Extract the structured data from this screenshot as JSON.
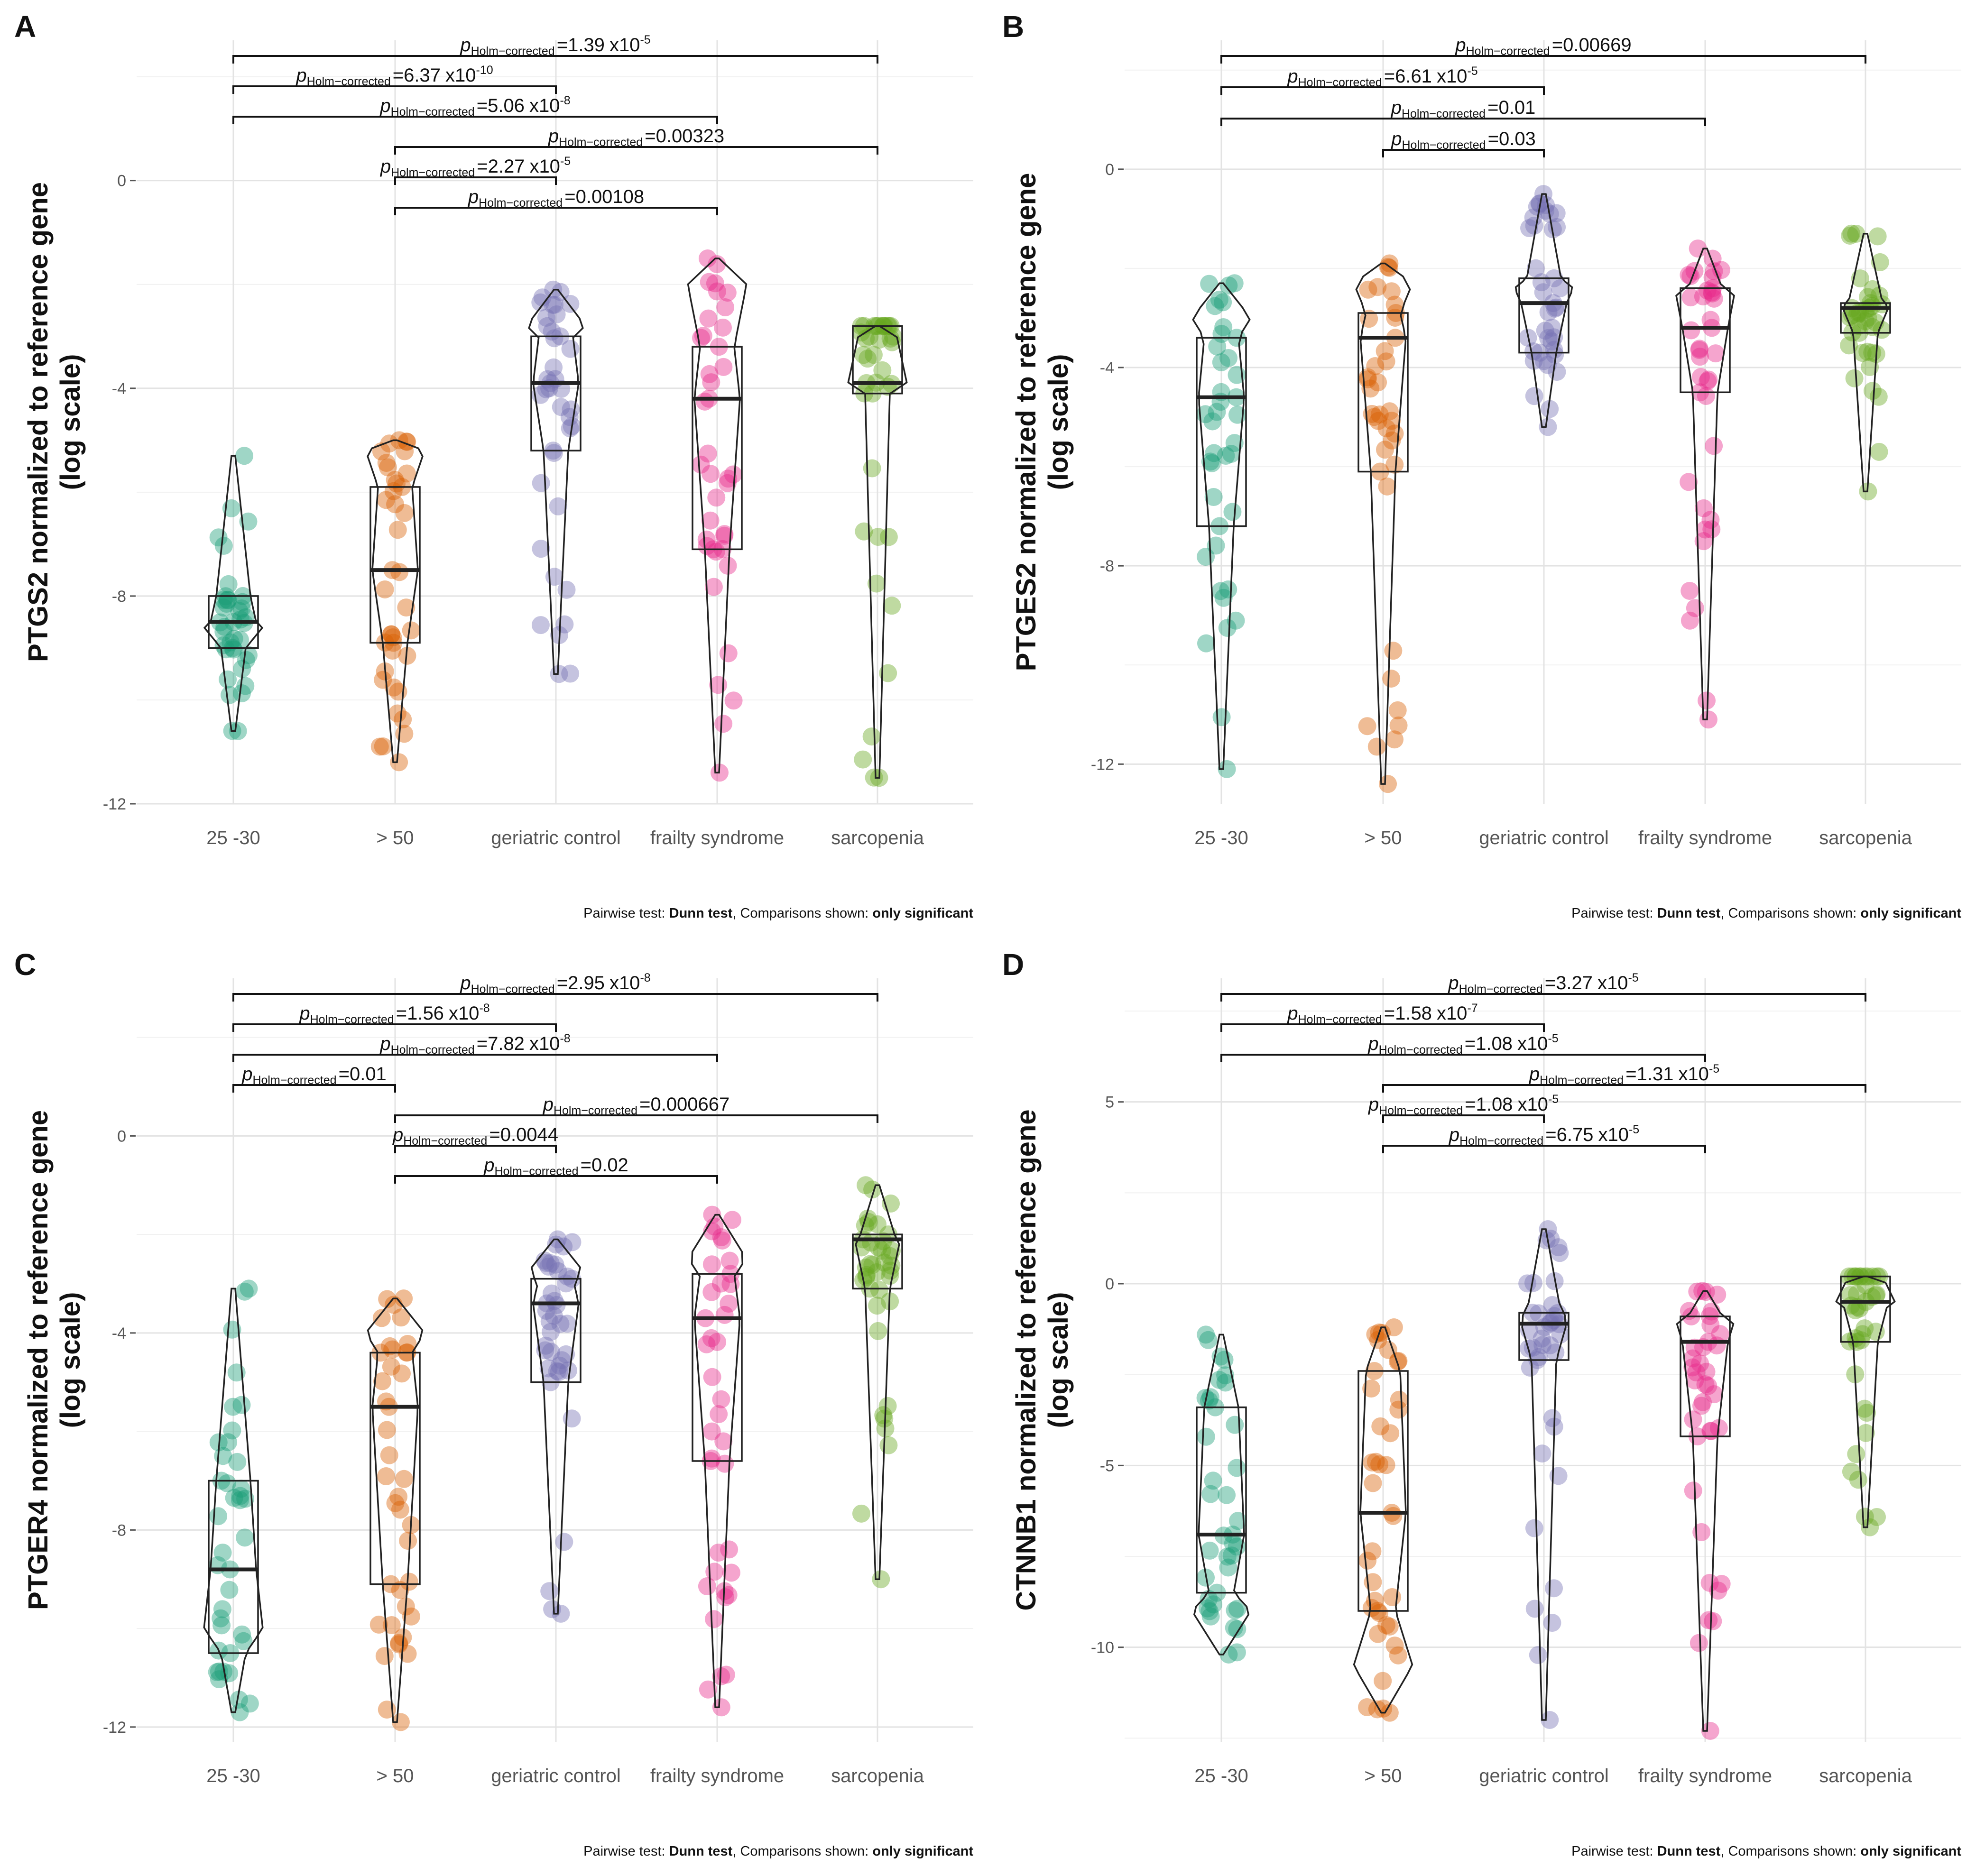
{
  "colors": {
    "25 -30": "#1b9e77",
    "> 50": "#d95f02",
    "geriatric control": "#7570b3",
    "frailty syndrome": "#e7298a",
    "sarcopenia": "#66a61e"
  },
  "chart_data": [
    {
      "panel": "A",
      "type": "violin-box-scatter",
      "ylabel_line1": "PTGS2 normalized to reference gene",
      "ylabel_line2": "(log scale)",
      "categories": [
        "25 -30",
        "> 50",
        "geriatric control",
        "frailty syndrome",
        "sarcopenia"
      ],
      "yticks": [
        0,
        -4,
        -8,
        -12
      ],
      "ylim": [
        -12.0,
        2.7
      ],
      "groups": [
        {
          "name": "25 -30",
          "min": -10.6,
          "q1": -9.0,
          "median": -8.5,
          "q3": -8.0,
          "max": -5.3,
          "mode": -8.6
        },
        {
          "name": "> 50",
          "min": -11.2,
          "q1": -8.9,
          "median": -7.5,
          "q3": -5.9,
          "max": -5.0,
          "mode": -5.2
        },
        {
          "name": "geriatric control",
          "min": -9.5,
          "q1": -5.2,
          "median": -3.9,
          "q3": -3.0,
          "max": -2.1,
          "mode": -2.8
        },
        {
          "name": "frailty syndrome",
          "min": -11.4,
          "q1": -7.1,
          "median": -4.2,
          "q3": -3.2,
          "max": -1.5,
          "mode": -2.0
        },
        {
          "name": "sarcopenia",
          "min": -11.5,
          "q1": -4.1,
          "median": -3.9,
          "q3": -2.8,
          "max": -2.8,
          "mode": -3.9
        }
      ],
      "comparisons": [
        {
          "from": "25 -30",
          "to": "sarcopenia",
          "p_value": "1.39",
          "p_exp": "-5"
        },
        {
          "from": "25 -30",
          "to": "geriatric control",
          "p_value": "6.37",
          "p_exp": "-10"
        },
        {
          "from": "25 -30",
          "to": "frailty syndrome",
          "p_value": "5.06",
          "p_exp": "-8"
        },
        {
          "from": "> 50",
          "to": "sarcopenia",
          "p_value": "0.00323",
          "p_exp": ""
        },
        {
          "from": "> 50",
          "to": "geriatric control",
          "p_value": "2.27",
          "p_exp": "-5"
        },
        {
          "from": "> 50",
          "to": "frailty syndrome",
          "p_value": "0.00108",
          "p_exp": ""
        }
      ]
    },
    {
      "panel": "B",
      "type": "violin-box-scatter",
      "ylabel_line1": "PTGES2 normalized to reference gene",
      "ylabel_line2": "(log scale)",
      "categories": [
        "25 -30",
        "> 50",
        "geriatric control",
        "frailty syndrome",
        "sarcopenia"
      ],
      "yticks": [
        0,
        -4,
        -8,
        -12
      ],
      "ylim": [
        -12.8,
        2.6
      ],
      "groups": [
        {
          "name": "25 -30",
          "min": -12.1,
          "q1": -7.2,
          "median": -4.6,
          "q3": -3.4,
          "max": -2.3,
          "mode": -3.0
        },
        {
          "name": "> 50",
          "min": -12.4,
          "q1": -6.1,
          "median": -3.4,
          "q3": -2.9,
          "max": -1.9,
          "mode": -2.3
        },
        {
          "name": "geriatric control",
          "min": -5.2,
          "q1": -3.7,
          "median": -2.7,
          "q3": -2.2,
          "max": -0.5,
          "mode": -2.4
        },
        {
          "name": "frailty syndrome",
          "min": -11.1,
          "q1": -4.5,
          "median": -3.2,
          "q3": -2.4,
          "max": -1.6,
          "mode": -2.5
        },
        {
          "name": "sarcopenia",
          "min": -6.5,
          "q1": -3.3,
          "median": -2.8,
          "q3": -2.7,
          "max": -1.3,
          "mode": -2.8
        }
      ],
      "comparisons": [
        {
          "from": "25 -30",
          "to": "sarcopenia",
          "p_value": "0.00669",
          "p_exp": ""
        },
        {
          "from": "25 -30",
          "to": "geriatric control",
          "p_value": "6.61",
          "p_exp": "-5"
        },
        {
          "from": "25 -30",
          "to": "frailty syndrome",
          "p_value": "0.01",
          "p_exp": ""
        },
        {
          "from": "> 50",
          "to": "geriatric control",
          "p_value": "0.03",
          "p_exp": ""
        }
      ]
    },
    {
      "panel": "C",
      "type": "violin-box-scatter",
      "ylabel_line1": "PTGER4 normalized to reference gene",
      "ylabel_line2": "(log scale)",
      "categories": [
        "25 -30",
        "> 50",
        "geriatric control",
        "frailty syndrome",
        "sarcopenia"
      ],
      "yticks": [
        0,
        -4,
        -8,
        -12
      ],
      "ylim": [
        -12.3,
        3.2
      ],
      "groups": [
        {
          "name": "25 -30",
          "min": -11.7,
          "q1": -10.5,
          "median": -8.8,
          "q3": -7.0,
          "max": -3.1,
          "mode": -10.0
        },
        {
          "name": "> 50",
          "min": -11.9,
          "q1": -9.1,
          "median": -5.5,
          "q3": -4.4,
          "max": -3.3,
          "mode": -4.0
        },
        {
          "name": "geriatric control",
          "min": -9.7,
          "q1": -5.0,
          "median": -3.4,
          "q3": -2.9,
          "max": -2.1,
          "mode": -2.8
        },
        {
          "name": "frailty syndrome",
          "min": -11.6,
          "q1": -6.6,
          "median": -3.7,
          "q3": -2.8,
          "max": -1.6,
          "mode": -2.5
        },
        {
          "name": "sarcopenia",
          "min": -9.0,
          "q1": -3.1,
          "median": -2.1,
          "q3": -2.0,
          "max": -1.0,
          "mode": -2.0
        }
      ],
      "comparisons": [
        {
          "from": "25 -30",
          "to": "sarcopenia",
          "p_value": "2.95",
          "p_exp": "-8"
        },
        {
          "from": "25 -30",
          "to": "geriatric control",
          "p_value": "1.56",
          "p_exp": "-8"
        },
        {
          "from": "25 -30",
          "to": "frailty syndrome",
          "p_value": "7.82",
          "p_exp": "-8"
        },
        {
          "from": "25 -30",
          "to": "> 50",
          "p_value": "0.01",
          "p_exp": ""
        },
        {
          "from": "> 50",
          "to": "sarcopenia",
          "p_value": "0.000667",
          "p_exp": ""
        },
        {
          "from": "> 50",
          "to": "geriatric control",
          "p_value": "0.0044",
          "p_exp": ""
        },
        {
          "from": "> 50",
          "to": "frailty syndrome",
          "p_value": "0.02",
          "p_exp": ""
        }
      ]
    },
    {
      "panel": "D",
      "type": "violin-box-scatter",
      "ylabel_line1": "CTNNB1 normalized to reference gene",
      "ylabel_line2": "(log scale)",
      "categories": [
        "25 -30",
        "> 50",
        "geriatric control",
        "frailty syndrome",
        "sarcopenia"
      ],
      "yticks": [
        5,
        0,
        -5,
        -10
      ],
      "ylim": [
        -12.6,
        8.4
      ],
      "groups": [
        {
          "name": "25 -30",
          "min": -10.2,
          "q1": -8.5,
          "median": -6.9,
          "q3": -3.4,
          "max": -1.4,
          "mode": -9.0
        },
        {
          "name": "> 50",
          "min": -11.8,
          "q1": -9.0,
          "median": -6.3,
          "q3": -2.4,
          "max": -1.2,
          "mode": -10.5
        },
        {
          "name": "geriatric control",
          "min": -12.0,
          "q1": -2.1,
          "median": -1.1,
          "q3": -0.8,
          "max": 1.5,
          "mode": -1.0
        },
        {
          "name": "frailty syndrome",
          "min": -12.3,
          "q1": -4.2,
          "median": -1.6,
          "q3": -0.9,
          "max": -0.2,
          "mode": -1.0
        },
        {
          "name": "sarcopenia",
          "min": -6.7,
          "q1": -1.6,
          "median": -0.5,
          "q3": 0.2,
          "max": 0.2,
          "mode": -0.5
        }
      ],
      "comparisons": [
        {
          "from": "25 -30",
          "to": "sarcopenia",
          "p_value": "3.27",
          "p_exp": "-5"
        },
        {
          "from": "25 -30",
          "to": "geriatric control",
          "p_value": "1.58",
          "p_exp": "-7"
        },
        {
          "from": "25 -30",
          "to": "frailty syndrome",
          "p_value": "1.08",
          "p_exp": "-5"
        },
        {
          "from": "> 50",
          "to": "sarcopenia",
          "p_value": "1.31",
          "p_exp": "-5"
        },
        {
          "from": "> 50",
          "to": "geriatric control",
          "p_value": "1.08",
          "p_exp": "-5"
        },
        {
          "from": "> 50",
          "to": "frailty syndrome",
          "p_value": "6.75",
          "p_exp": "-5"
        }
      ]
    }
  ],
  "annotation_text": {
    "p_label": "p",
    "p_subscript": "Holm−corrected",
    "equals": "=",
    "times_ten": "x10"
  },
  "caption": {
    "prefix": "Pairwise test: ",
    "test": "Dunn test",
    "middle": ", Comparisons shown: ",
    "shown": "only significant"
  }
}
